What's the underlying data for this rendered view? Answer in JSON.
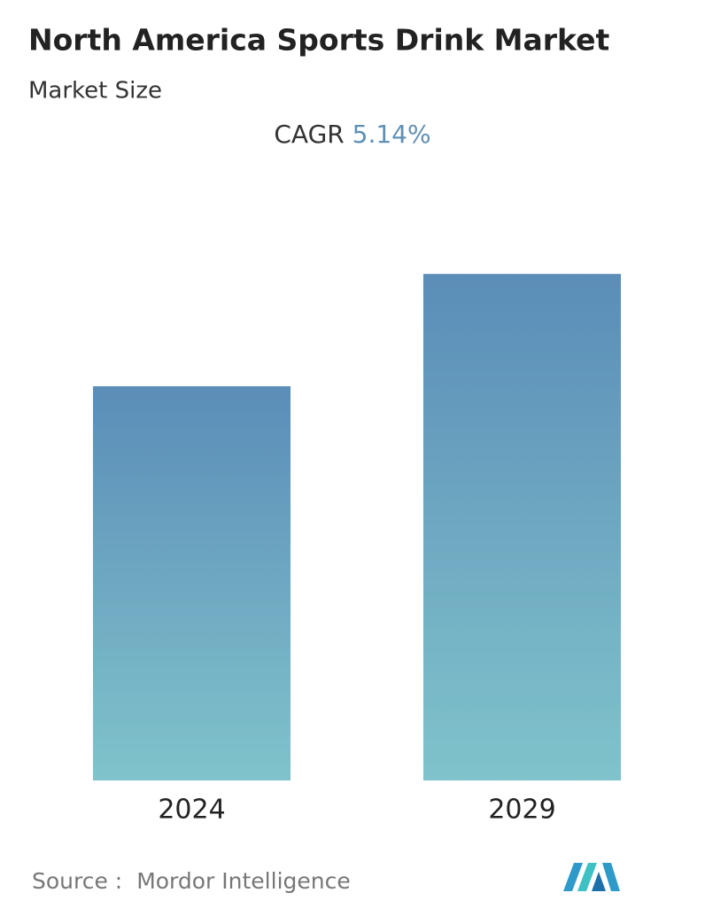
{
  "chart_data": {
    "type": "bar",
    "title": "North America Sports Drink Market",
    "subtitle": "Market Size",
    "cagr_label": "CAGR",
    "cagr_value": "5.14%",
    "categories": [
      "2024",
      "2029"
    ],
    "values": [
      100,
      128.5
    ],
    "ylim": [
      0,
      146.3
    ],
    "gradient": [
      "#5b8db8",
      "#80c3cb"
    ],
    "source_label": "Source :",
    "source": "Mordor Intelligence"
  }
}
